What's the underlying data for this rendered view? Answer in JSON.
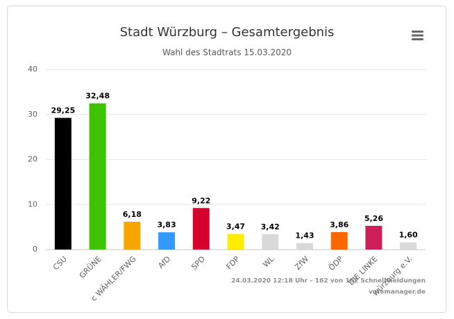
{
  "chart_data": {
    "type": "bar",
    "title": "Stadt Würzburg – Gesamtergebnis",
    "subtitle": "Wahl des Stadtrats 15.03.2020",
    "categories": [
      "CSU",
      "GRÜNE",
      "c WÄHLER/FWG",
      "AfD",
      "SPD",
      "FDP",
      "WL",
      "ZfW",
      "ÖDP",
      "DIE LINKE",
      "würzburg e.V."
    ],
    "values": [
      29.25,
      32.48,
      6.18,
      3.83,
      9.22,
      3.47,
      3.42,
      1.43,
      3.86,
      5.26,
      1.6
    ],
    "value_labels": [
      "29,25",
      "32,48",
      "6,18",
      "3,83",
      "9,22",
      "3,47",
      "3,42",
      "1,43",
      "3,86",
      "5,26",
      "1,60"
    ],
    "colors": [
      "#000000",
      "#3ec300",
      "#f7a600",
      "#3399ff",
      "#d5002c",
      "#ffed00",
      "#d9d9d9",
      "#d9d9d9",
      "#ff6600",
      "#cc1f5a",
      "#d9d9d9"
    ],
    "ylim": [
      0,
      40
    ],
    "yticks": [
      0,
      10,
      20,
      30,
      40
    ],
    "grid": true,
    "credits": [
      "24.03.2020 12:18 Uhr – 162 von 162 Schnellmeldungen",
      "votemanager.de"
    ]
  }
}
